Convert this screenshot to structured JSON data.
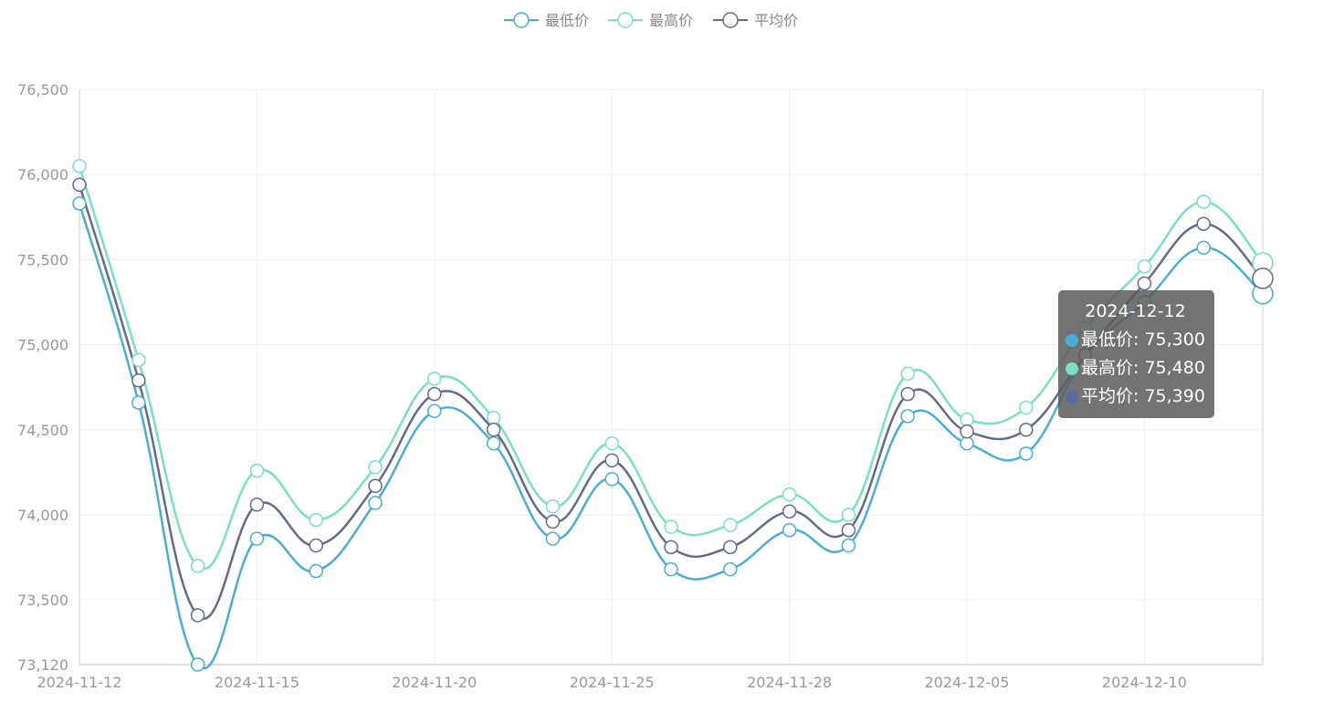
{
  "chart_data": {
    "type": "line",
    "smooth": true,
    "x": [
      "2024-11-12",
      "2024-11-13",
      "2024-11-14",
      "2024-11-15",
      "2024-11-18",
      "2024-11-19",
      "2024-11-20",
      "2024-11-21",
      "2024-11-22",
      "2024-11-25",
      "2024-11-26",
      "2024-11-27",
      "2024-11-28",
      "2024-11-29",
      "2024-12-02",
      "2024-12-05",
      "2024-12-06",
      "2024-12-09",
      "2024-12-10",
      "2024-12-11",
      "2024-12-12"
    ],
    "x_tick_labels": [
      "2024-11-12",
      "2024-11-15",
      "2024-11-20",
      "2024-11-25",
      "2024-11-28",
      "2024-12-05",
      "2024-12-10"
    ],
    "x_tick_indices": [
      0,
      3,
      6,
      9,
      12,
      15,
      18
    ],
    "y_ticks": [
      73120,
      73500,
      74000,
      74500,
      75000,
      75500,
      76000,
      76500
    ],
    "y_tick_labels": [
      "73,120",
      "73,500",
      "74,000",
      "74,500",
      "75,000",
      "75,500",
      "76,000",
      "76,500"
    ],
    "ylim": [
      73120,
      76500
    ],
    "grid": true,
    "legend_position": "top-center",
    "series": [
      {
        "name": "最低价",
        "color": "#4aaed4",
        "values": [
          75830,
          74660,
          73120,
          73860,
          73670,
          74070,
          74610,
          74420,
          73860,
          74210,
          73680,
          73680,
          73910,
          73820,
          74580,
          74420,
          74360,
          74930,
          75250,
          75570,
          75300
        ]
      },
      {
        "name": "最高价",
        "color": "#7ae0c3",
        "values": [
          76050,
          74910,
          73700,
          74260,
          73970,
          74280,
          74800,
          74570,
          74050,
          74420,
          73930,
          73940,
          74120,
          74000,
          74830,
          74560,
          74630,
          75100,
          75460,
          75840,
          75480
        ]
      },
      {
        "name": "平均价",
        "color": "#636b86",
        "values": [
          75940,
          74790,
          73410,
          74060,
          73820,
          74170,
          74710,
          74500,
          73960,
          74320,
          73810,
          73810,
          74020,
          73910,
          74710,
          74490,
          74500,
          74940,
          75360,
          75710,
          75390
        ]
      }
    ],
    "tooltip": {
      "title": "2024-12-12",
      "rows": [
        {
          "label": "最低价: 75,300",
          "color": "#4aaed4"
        },
        {
          "label": "最高价: 75,480",
          "color": "#7ae0c3"
        },
        {
          "label": "平均价: 75,390",
          "color": "#5a6aa0"
        }
      ]
    }
  }
}
